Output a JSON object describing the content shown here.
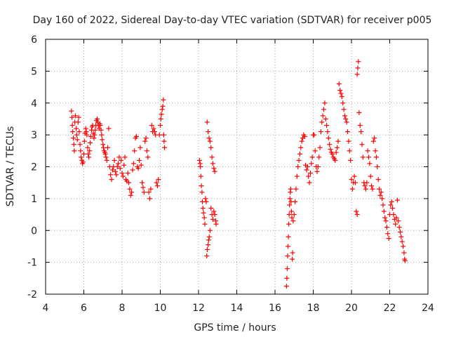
{
  "chart_data": {
    "type": "scatter",
    "title": "Day 160 of 2022, Sidereal Day-to-day VTEC variation (SDTVAR) for receiver p005",
    "xlabel": "GPS time / hours",
    "ylabel": "SDTVAR / TECUs",
    "xlim": [
      4,
      24
    ],
    "ylim": [
      -2,
      6
    ],
    "x_ticks": [
      "4",
      "6",
      "8",
      "10",
      "12",
      "14",
      "16",
      "18",
      "20",
      "22",
      "24"
    ],
    "y_ticks": [
      "-2",
      "-1",
      "0",
      "1",
      "2",
      "3",
      "4",
      "5",
      "6"
    ],
    "grid": true,
    "marker": "+",
    "color": "#ff0000",
    "series": [
      {
        "name": "SDTVAR",
        "points": [
          [
            5.35,
            3.75
          ],
          [
            5.38,
            3.55
          ],
          [
            5.4,
            3.3
          ],
          [
            5.42,
            3.1
          ],
          [
            5.45,
            2.9
          ],
          [
            5.48,
            2.7
          ],
          [
            5.5,
            2.5
          ],
          [
            5.53,
            3.4
          ],
          [
            5.56,
            3.6
          ],
          [
            5.6,
            3.2
          ],
          [
            5.63,
            3.0
          ],
          [
            5.66,
            2.85
          ],
          [
            5.7,
            3.4
          ],
          [
            5.73,
            3.55
          ],
          [
            5.76,
            3.1
          ],
          [
            5.8,
            2.7
          ],
          [
            5.83,
            2.5
          ],
          [
            5.86,
            2.3
          ],
          [
            5.9,
            2.2
          ],
          [
            5.93,
            2.1
          ],
          [
            5.96,
            2.15
          ],
          [
            6.0,
            2.4
          ],
          [
            6.03,
            2.8
          ],
          [
            6.06,
            3.05
          ],
          [
            6.1,
            3.2
          ],
          [
            6.13,
            3.1
          ],
          [
            6.16,
            3.0
          ],
          [
            6.2,
            2.6
          ],
          [
            6.23,
            2.4
          ],
          [
            6.26,
            2.3
          ],
          [
            6.3,
            2.5
          ],
          [
            6.33,
            2.75
          ],
          [
            6.36,
            2.95
          ],
          [
            6.4,
            3.15
          ],
          [
            6.43,
            3.25
          ],
          [
            6.46,
            3.3
          ],
          [
            6.5,
            3.05
          ],
          [
            6.53,
            2.9
          ],
          [
            6.56,
            3.0
          ],
          [
            6.6,
            3.15
          ],
          [
            6.63,
            3.3
          ],
          [
            6.66,
            3.45
          ],
          [
            6.7,
            3.5
          ],
          [
            6.73,
            3.4
          ],
          [
            6.76,
            3.3
          ],
          [
            6.8,
            3.2
          ],
          [
            6.83,
            3.35
          ],
          [
            6.86,
            3.3
          ],
          [
            6.9,
            3.15
          ],
          [
            6.93,
            3.0
          ],
          [
            6.96,
            2.85
          ],
          [
            7.0,
            2.7
          ],
          [
            7.03,
            2.6
          ],
          [
            7.06,
            2.5
          ],
          [
            7.1,
            2.45
          ],
          [
            7.13,
            2.4
          ],
          [
            7.16,
            2.3
          ],
          [
            7.2,
            2.2
          ],
          [
            7.25,
            2.6
          ],
          [
            7.3,
            3.2
          ],
          [
            7.35,
            2.0
          ],
          [
            7.4,
            1.75
          ],
          [
            7.45,
            1.6
          ],
          [
            7.5,
            1.9
          ],
          [
            7.55,
            2.0
          ],
          [
            7.6,
            2.2
          ],
          [
            7.65,
            1.85
          ],
          [
            7.7,
            1.75
          ],
          [
            7.75,
            2.0
          ],
          [
            7.8,
            2.1
          ],
          [
            7.85,
            2.3
          ],
          [
            7.9,
            1.95
          ],
          [
            7.95,
            2.2
          ],
          [
            8.0,
            1.8
          ],
          [
            8.05,
            1.7
          ],
          [
            8.1,
            2.05
          ],
          [
            8.15,
            2.3
          ],
          [
            8.2,
            1.6
          ],
          [
            8.25,
            1.55
          ],
          [
            8.3,
            1.8
          ],
          [
            8.35,
            1.5
          ],
          [
            8.4,
            1.3
          ],
          [
            8.45,
            1.1
          ],
          [
            8.5,
            1.2
          ],
          [
            8.55,
            1.9
          ],
          [
            8.6,
            2.1
          ],
          [
            8.65,
            2.5
          ],
          [
            8.7,
            2.9
          ],
          [
            8.75,
            2.95
          ],
          [
            8.8,
            2.0
          ],
          [
            8.85,
            1.95
          ],
          [
            8.9,
            2.2
          ],
          [
            8.95,
            2.6
          ],
          [
            9.0,
            2.05
          ],
          [
            9.05,
            1.5
          ],
          [
            9.1,
            1.35
          ],
          [
            9.15,
            1.2
          ],
          [
            9.2,
            2.8
          ],
          [
            9.25,
            2.9
          ],
          [
            9.3,
            2.5
          ],
          [
            9.35,
            2.3
          ],
          [
            9.4,
            1.2
          ],
          [
            9.45,
            1.0
          ],
          [
            9.5,
            1.3
          ],
          [
            9.55,
            3.3
          ],
          [
            9.6,
            3.1
          ],
          [
            9.65,
            3.2
          ],
          [
            9.7,
            3.1
          ],
          [
            9.75,
            3.0
          ],
          [
            9.8,
            1.5
          ],
          [
            9.85,
            1.4
          ],
          [
            9.9,
            1.6
          ],
          [
            9.95,
            3.0
          ],
          [
            10.0,
            3.3
          ],
          [
            10.03,
            3.5
          ],
          [
            10.06,
            3.65
          ],
          [
            10.1,
            3.8
          ],
          [
            10.13,
            3.9
          ],
          [
            10.16,
            4.1
          ],
          [
            10.18,
            3.0
          ],
          [
            10.2,
            2.8
          ],
          [
            10.22,
            2.6
          ],
          [
            12.05,
            2.2
          ],
          [
            12.08,
            2.1
          ],
          [
            12.1,
            2.0
          ],
          [
            12.12,
            1.7
          ],
          [
            12.15,
            1.4
          ],
          [
            12.18,
            1.2
          ],
          [
            12.2,
            0.9
          ],
          [
            12.23,
            0.7
          ],
          [
            12.26,
            0.55
          ],
          [
            12.3,
            0.4
          ],
          [
            12.33,
            0.2
          ],
          [
            12.36,
            1.0
          ],
          [
            12.4,
            0.9
          ],
          [
            12.43,
            -0.8
          ],
          [
            12.46,
            -0.6
          ],
          [
            12.5,
            -0.45
          ],
          [
            12.53,
            -0.3
          ],
          [
            12.56,
            -0.2
          ],
          [
            12.6,
            0.0
          ],
          [
            12.45,
            3.4
          ],
          [
            12.5,
            3.1
          ],
          [
            12.55,
            2.9
          ],
          [
            12.6,
            2.8
          ],
          [
            12.65,
            2.6
          ],
          [
            12.7,
            2.3
          ],
          [
            12.75,
            2.1
          ],
          [
            12.8,
            1.95
          ],
          [
            12.85,
            1.85
          ],
          [
            12.65,
            0.7
          ],
          [
            12.7,
            0.5
          ],
          [
            12.75,
            0.35
          ],
          [
            12.8,
            0.6
          ],
          [
            12.85,
            0.5
          ],
          [
            12.9,
            0.3
          ],
          [
            12.92,
            0.2
          ],
          [
            16.6,
            -1.75
          ],
          [
            16.62,
            -1.5
          ],
          [
            16.64,
            -1.2
          ],
          [
            16.66,
            -0.8
          ],
          [
            16.68,
            -0.5
          ],
          [
            16.7,
            -0.2
          ],
          [
            16.72,
            0.2
          ],
          [
            16.74,
            0.5
          ],
          [
            16.76,
            0.8
          ],
          [
            16.78,
            1.0
          ],
          [
            16.8,
            1.2
          ],
          [
            16.82,
            1.3
          ],
          [
            16.84,
            0.9
          ],
          [
            16.86,
            0.6
          ],
          [
            16.88,
            0.4
          ],
          [
            16.9,
            -0.9
          ],
          [
            16.92,
            -0.7
          ],
          [
            16.95,
            0.3
          ],
          [
            17.0,
            0.5
          ],
          [
            17.05,
            0.9
          ],
          [
            17.1,
            1.3
          ],
          [
            17.15,
            1.7
          ],
          [
            17.2,
            2.0
          ],
          [
            17.25,
            2.2
          ],
          [
            17.3,
            2.4
          ],
          [
            17.35,
            2.6
          ],
          [
            17.4,
            2.8
          ],
          [
            17.45,
            2.9
          ],
          [
            17.5,
            3.0
          ],
          [
            17.55,
            2.95
          ],
          [
            17.6,
            2.05
          ],
          [
            17.65,
            1.9
          ],
          [
            17.7,
            2.0
          ],
          [
            17.75,
            1.7
          ],
          [
            17.8,
            1.5
          ],
          [
            17.85,
            1.8
          ],
          [
            17.9,
            2.1
          ],
          [
            17.95,
            2.3
          ],
          [
            18.0,
            3.0
          ],
          [
            18.05,
            3.0
          ],
          [
            18.1,
            2.5
          ],
          [
            18.15,
            2.0
          ],
          [
            18.2,
            1.85
          ],
          [
            18.25,
            2.0
          ],
          [
            18.3,
            2.3
          ],
          [
            18.35,
            2.6
          ],
          [
            18.4,
            3.1
          ],
          [
            18.45,
            3.4
          ],
          [
            18.5,
            3.6
          ],
          [
            18.55,
            3.8
          ],
          [
            18.6,
            4.0
          ],
          [
            18.65,
            3.5
          ],
          [
            18.7,
            3.3
          ],
          [
            18.75,
            3.1
          ],
          [
            18.8,
            2.9
          ],
          [
            18.85,
            2.7
          ],
          [
            18.9,
            2.55
          ],
          [
            18.95,
            2.45
          ],
          [
            19.0,
            2.4
          ],
          [
            19.05,
            2.3
          ],
          [
            19.1,
            2.25
          ],
          [
            19.15,
            2.2
          ],
          [
            19.2,
            2.45
          ],
          [
            19.25,
            2.6
          ],
          [
            19.3,
            2.8
          ],
          [
            19.35,
            4.6
          ],
          [
            19.4,
            4.4
          ],
          [
            19.45,
            4.3
          ],
          [
            19.5,
            4.2
          ],
          [
            19.55,
            4.0
          ],
          [
            19.6,
            3.8
          ],
          [
            19.65,
            3.6
          ],
          [
            19.7,
            3.5
          ],
          [
            19.75,
            3.4
          ],
          [
            19.8,
            3.1
          ],
          [
            19.85,
            2.8
          ],
          [
            19.9,
            2.5
          ],
          [
            19.95,
            2.2
          ],
          [
            20.0,
            1.6
          ],
          [
            20.05,
            1.3
          ],
          [
            20.1,
            1.5
          ],
          [
            20.15,
            1.7
          ],
          [
            20.2,
            1.5
          ],
          [
            20.25,
            0.6
          ],
          [
            20.3,
            0.5
          ],
          [
            20.3,
            4.9
          ],
          [
            20.33,
            5.1
          ],
          [
            20.36,
            5.3
          ],
          [
            20.4,
            3.7
          ],
          [
            20.45,
            3.3
          ],
          [
            20.5,
            3.1
          ],
          [
            20.55,
            2.7
          ],
          [
            20.6,
            2.3
          ],
          [
            20.65,
            1.5
          ],
          [
            20.7,
            1.4
          ],
          [
            20.75,
            1.3
          ],
          [
            20.8,
            1.5
          ],
          [
            20.85,
            2.5
          ],
          [
            20.9,
            2.3
          ],
          [
            20.95,
            2.1
          ],
          [
            21.0,
            1.7
          ],
          [
            21.05,
            1.4
          ],
          [
            21.1,
            1.3
          ],
          [
            21.15,
            2.8
          ],
          [
            21.2,
            2.9
          ],
          [
            21.25,
            2.5
          ],
          [
            21.3,
            2.3
          ],
          [
            21.35,
            2.0
          ],
          [
            21.4,
            1.6
          ],
          [
            21.45,
            1.3
          ],
          [
            21.5,
            1.1
          ],
          [
            21.55,
            1.2
          ],
          [
            21.6,
            1.0
          ],
          [
            21.65,
            0.8
          ],
          [
            21.7,
            0.6
          ],
          [
            21.75,
            0.4
          ],
          [
            21.8,
            0.3
          ],
          [
            21.85,
            0.1
          ],
          [
            21.9,
            -0.1
          ],
          [
            21.95,
            -0.25
          ],
          [
            22.0,
            0.5
          ],
          [
            22.05,
            0.8
          ],
          [
            22.1,
            0.9
          ],
          [
            22.15,
            0.7
          ],
          [
            22.2,
            0.5
          ],
          [
            22.25,
            0.35
          ],
          [
            22.3,
            0.2
          ],
          [
            22.35,
            0.4
          ],
          [
            22.4,
            0.95
          ],
          [
            22.45,
            0.3
          ],
          [
            22.5,
            0.1
          ],
          [
            22.55,
            -0.05
          ],
          [
            22.6,
            -0.2
          ],
          [
            22.65,
            -0.35
          ],
          [
            22.7,
            -0.5
          ],
          [
            22.75,
            -0.7
          ],
          [
            22.78,
            -0.9
          ],
          [
            22.8,
            -0.95
          ]
        ]
      }
    ]
  }
}
